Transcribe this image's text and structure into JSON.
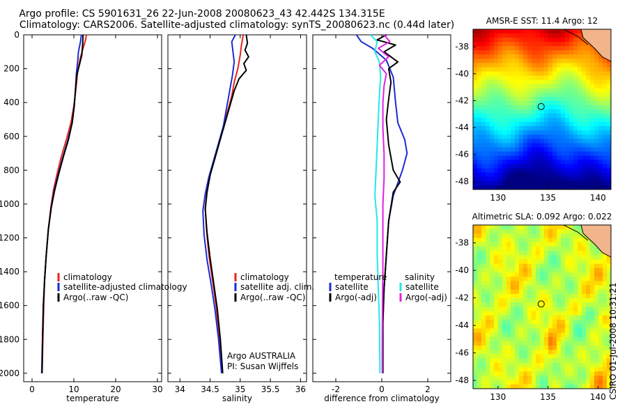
{
  "header": {
    "title_line1": "Argo profile: CS 5901631_26 22-Jun-2008 20080623_43 42.442S 134.315E",
    "title_line2": "Climatology: CARS2006. Satellite-adjusted climatology: synTS_20080623.nc (0.44d later)"
  },
  "stamp": "CSIRO 01-Jul-2008 10:31:21",
  "colors": {
    "red": "#e8231a",
    "blue": "#1a2ad6",
    "black": "#000000",
    "cyan": "#22e8e8",
    "magenta": "#e020e0"
  },
  "chart_data": [
    {
      "type": "line",
      "id": "temperature",
      "xlabel": "temperature",
      "ylabel": "",
      "xlim": [
        -2,
        31
      ],
      "ylim": [
        2050,
        0
      ],
      "xticks": [
        0,
        10,
        20,
        30
      ],
      "yticks": [
        0,
        200,
        400,
        600,
        800,
        1000,
        1200,
        1400,
        1600,
        1800,
        2000
      ],
      "legend": [
        "climatology",
        "satellite-adjusted climatology",
        "Argo(..raw -QC)"
      ],
      "series": [
        {
          "name": "climatology",
          "color": "red",
          "points": [
            [
              13.0,
              0
            ],
            [
              12.8,
              30
            ],
            [
              12.2,
              80
            ],
            [
              11.5,
              140
            ],
            [
              10.9,
              220
            ],
            [
              10.5,
              320
            ],
            [
              10.0,
              420
            ],
            [
              9.3,
              520
            ],
            [
              8.2,
              620
            ],
            [
              7.0,
              720
            ],
            [
              6.0,
              820
            ],
            [
              5.1,
              920
            ],
            [
              4.5,
              1020
            ],
            [
              3.9,
              1150
            ],
            [
              3.4,
              1300
            ],
            [
              3.0,
              1450
            ],
            [
              2.8,
              1600
            ],
            [
              2.6,
              1800
            ],
            [
              2.4,
              2000
            ]
          ]
        },
        {
          "name": "satellite-adjusted climatology",
          "color": "blue",
          "points": [
            [
              11.8,
              0
            ],
            [
              11.6,
              40
            ],
            [
              11.1,
              100
            ],
            [
              10.9,
              160
            ],
            [
              10.6,
              230
            ],
            [
              10.4,
              320
            ],
            [
              10.1,
              420
            ],
            [
              9.6,
              520
            ],
            [
              8.6,
              620
            ],
            [
              7.4,
              720
            ],
            [
              6.3,
              820
            ],
            [
              5.3,
              920
            ],
            [
              4.6,
              1020
            ],
            [
              3.9,
              1150
            ],
            [
              3.4,
              1300
            ],
            [
              3.0,
              1450
            ],
            [
              2.7,
              1600
            ],
            [
              2.5,
              1800
            ],
            [
              2.3,
              2000
            ]
          ]
        },
        {
          "name": "Argo(..raw -QC)",
          "color": "black",
          "points": [
            [
              12.2,
              0
            ],
            [
              12.1,
              60
            ],
            [
              11.9,
              120
            ],
            [
              11.3,
              180
            ],
            [
              10.7,
              240
            ],
            [
              10.4,
              320
            ],
            [
              10.1,
              420
            ],
            [
              9.6,
              520
            ],
            [
              8.7,
              620
            ],
            [
              7.5,
              720
            ],
            [
              6.4,
              820
            ],
            [
              5.4,
              920
            ],
            [
              4.6,
              1020
            ],
            [
              3.9,
              1150
            ],
            [
              3.4,
              1300
            ],
            [
              3.0,
              1450
            ],
            [
              2.7,
              1600
            ],
            [
              2.5,
              1800
            ],
            [
              2.4,
              2000
            ]
          ]
        }
      ]
    },
    {
      "type": "line",
      "id": "salinity",
      "xlabel": "salinity",
      "ylabel": "",
      "xlim": [
        33.8,
        36.1
      ],
      "ylim": [
        2050,
        0
      ],
      "xticks": [
        34,
        34.5,
        35,
        35.5,
        36
      ],
      "xticklabels": [
        "34",
        "34.5",
        "35",
        "35.5",
        "36"
      ],
      "legend": [
        "climatology",
        "satellite adj. clim.",
        "Argo(..raw -QC)"
      ],
      "note_line1": "Argo AUSTRALIA",
      "note_line2": "PI: Susan Wijffels",
      "series": [
        {
          "name": "climatology",
          "color": "red",
          "points": [
            [
              35.05,
              0
            ],
            [
              35.02,
              60
            ],
            [
              35.0,
              120
            ],
            [
              34.96,
              200
            ],
            [
              34.9,
              280
            ],
            [
              34.86,
              360
            ],
            [
              34.8,
              440
            ],
            [
              34.74,
              520
            ],
            [
              34.66,
              620
            ],
            [
              34.58,
              720
            ],
            [
              34.5,
              820
            ],
            [
              34.45,
              920
            ],
            [
              34.42,
              1020
            ],
            [
              34.44,
              1150
            ],
            [
              34.48,
              1300
            ],
            [
              34.54,
              1450
            ],
            [
              34.6,
              1600
            ],
            [
              34.66,
              1800
            ],
            [
              34.7,
              2000
            ]
          ]
        },
        {
          "name": "satellite adj. clim.",
          "color": "blue",
          "points": [
            [
              34.92,
              0
            ],
            [
              34.86,
              40
            ],
            [
              34.88,
              100
            ],
            [
              34.9,
              160
            ],
            [
              34.87,
              240
            ],
            [
              34.82,
              340
            ],
            [
              34.77,
              440
            ],
            [
              34.72,
              540
            ],
            [
              34.64,
              640
            ],
            [
              34.56,
              740
            ],
            [
              34.48,
              840
            ],
            [
              34.42,
              940
            ],
            [
              34.38,
              1040
            ],
            [
              34.4,
              1180
            ],
            [
              34.45,
              1330
            ],
            [
              34.52,
              1480
            ],
            [
              34.58,
              1620
            ],
            [
              34.64,
              1800
            ],
            [
              34.69,
              2000
            ]
          ]
        },
        {
          "name": "Argo(..raw -QC)",
          "color": "black",
          "points": [
            [
              35.1,
              0
            ],
            [
              35.12,
              50
            ],
            [
              35.08,
              90
            ],
            [
              35.14,
              130
            ],
            [
              35.06,
              170
            ],
            [
              35.1,
              210
            ],
            [
              34.98,
              260
            ],
            [
              34.9,
              330
            ],
            [
              34.82,
              430
            ],
            [
              34.74,
              530
            ],
            [
              34.66,
              630
            ],
            [
              34.58,
              730
            ],
            [
              34.5,
              830
            ],
            [
              34.45,
              930
            ],
            [
              34.42,
              1030
            ],
            [
              34.45,
              1170
            ],
            [
              34.5,
              1320
            ],
            [
              34.56,
              1470
            ],
            [
              34.62,
              1620
            ],
            [
              34.67,
              1800
            ],
            [
              34.71,
              2000
            ]
          ]
        }
      ]
    },
    {
      "type": "line",
      "id": "difference",
      "xlabel": "difference from climatology",
      "ylabel": "",
      "xlim": [
        -3,
        3
      ],
      "ylim": [
        2050,
        0
      ],
      "xticks": [
        -2,
        0,
        2
      ],
      "legend_headers": [
        "temperature",
        "salinity"
      ],
      "legend": [
        "satellite",
        "Argo(-adj)",
        "satellite",
        "Argo(-adj)"
      ],
      "series": [
        {
          "name": "temperature satellite",
          "color": "blue",
          "points": [
            [
              -1.1,
              0
            ],
            [
              -0.9,
              40
            ],
            [
              -0.4,
              80
            ],
            [
              0.2,
              150
            ],
            [
              0.5,
              250
            ],
            [
              0.6,
              400
            ],
            [
              0.7,
              520
            ],
            [
              1.0,
              620
            ],
            [
              1.1,
              700
            ],
            [
              0.9,
              800
            ],
            [
              0.5,
              950
            ],
            [
              0.3,
              1100
            ],
            [
              0.2,
              1300
            ],
            [
              0.1,
              1500
            ],
            [
              0.05,
              1700
            ],
            [
              0.05,
              2000
            ]
          ]
        },
        {
          "name": "temperature Argo(-adj)",
          "color": "black",
          "points": [
            [
              0.2,
              0
            ],
            [
              -0.2,
              30
            ],
            [
              0.6,
              60
            ],
            [
              0.1,
              100
            ],
            [
              0.7,
              160
            ],
            [
              0.3,
              200
            ],
            [
              0.4,
              280
            ],
            [
              0.3,
              380
            ],
            [
              0.2,
              500
            ],
            [
              0.3,
              650
            ],
            [
              0.5,
              800
            ],
            [
              0.8,
              870
            ],
            [
              0.5,
              930
            ],
            [
              0.3,
              1100
            ],
            [
              0.2,
              1300
            ],
            [
              0.1,
              1500
            ],
            [
              0.05,
              1700
            ],
            [
              0.05,
              2000
            ]
          ]
        },
        {
          "name": "salinity satellite",
          "color": "cyan",
          "points": [
            [
              -0.5,
              0
            ],
            [
              -0.2,
              40
            ],
            [
              -0.3,
              100
            ],
            [
              -0.1,
              160
            ],
            [
              -0.05,
              250
            ],
            [
              -0.1,
              350
            ],
            [
              -0.15,
              500
            ],
            [
              -0.2,
              650
            ],
            [
              -0.25,
              800
            ],
            [
              -0.3,
              950
            ],
            [
              -0.2,
              1100
            ],
            [
              -0.2,
              1300
            ],
            [
              -0.15,
              1500
            ],
            [
              -0.1,
              1700
            ],
            [
              -0.08,
              2000
            ]
          ]
        },
        {
          "name": "salinity Argo(-adj)",
          "color": "magenta",
          "points": [
            [
              0.1,
              0
            ],
            [
              0.35,
              40
            ],
            [
              -0.15,
              80
            ],
            [
              0.3,
              130
            ],
            [
              -0.1,
              180
            ],
            [
              0.2,
              230
            ],
            [
              0.1,
              300
            ],
            [
              0.05,
              400
            ],
            [
              0.05,
              550
            ],
            [
              0.1,
              700
            ],
            [
              0.1,
              850
            ],
            [
              0.05,
              1000
            ],
            [
              0.05,
              1200
            ],
            [
              0.05,
              1400
            ],
            [
              0.03,
              1600
            ],
            [
              0.02,
              1800
            ],
            [
              0.02,
              2000
            ]
          ]
        }
      ]
    },
    {
      "type": "heatmap",
      "id": "sst-map",
      "title": "AMSR-E SST: 11.4 Argo: 12",
      "xlim": [
        127.5,
        141.3
      ],
      "ylim": [
        -48.6,
        -36.7
      ],
      "xticks": [
        130,
        135,
        140
      ],
      "yticks": [
        -38,
        -40,
        -42,
        -44,
        -46,
        -48
      ],
      "marker": {
        "lon": 134.315,
        "lat": -42.442
      },
      "colormap": "jet",
      "land": "top-right"
    },
    {
      "type": "heatmap",
      "id": "sla-map",
      "title": "Altimetric SLA: 0.092 Argo: 0.022",
      "xlim": [
        127.5,
        141.3
      ],
      "ylim": [
        -48.6,
        -36.7
      ],
      "xticks": [
        130,
        135,
        140
      ],
      "yticks": [
        -38,
        -40,
        -42,
        -44,
        -46,
        -48
      ],
      "marker": {
        "lon": 134.315,
        "lat": -42.442
      },
      "colormap": "jet",
      "land": "top-right"
    }
  ]
}
